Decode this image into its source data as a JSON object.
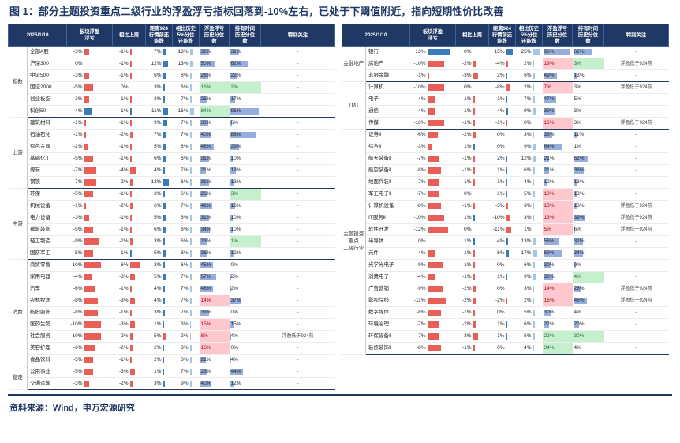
{
  "title": "图 1：部分主题投资重点二级行业的浮盈浮亏指标回落到-10%左右，已处于下阈值附近，指向短期性价比改善",
  "source": "资料来源：Wind，申万宏源研究",
  "colors": {
    "header_bg": "#1F3864",
    "bar_negative": "#E8554E",
    "bar_positive": "#2E75B6",
    "bar_light": "#9DC3E6",
    "bar_percentile": "#8FAADC",
    "hl_green": "#C6EFCE",
    "hl_red": "#FFC7CE"
  },
  "chart_data": [
    {
      "type": "table",
      "panel": "left",
      "date": "2025/1/10",
      "columns": [
        "板块浮盈\n浮亏",
        "相比上周",
        "距离924\n行情前还\n能跌",
        "相比历史\n5%分位\n还能跌",
        "浮盈浮亏\n历史分位\n数",
        "持有时间\n历史分位\n数",
        "特别关注"
      ],
      "groups": [
        {
          "label": "指数",
          "rows": [
            {
              "name": "全部A股",
              "values": [
                "-3%",
                "-1%",
                "7%",
                "13%",
                "32%",
                "31%"
              ],
              "note": "-"
            },
            {
              "name": "沪深300",
              "values": [
                "0%",
                "-1%",
                "12%",
                "13%",
                "50%",
                "62%"
              ],
              "note": "-"
            },
            {
              "name": "中证500",
              "values": [
                "-3%",
                "-1%",
                "6%",
                "8%",
                "28%",
                "22%"
              ],
              "note": "-"
            },
            {
              "name": "国证2000",
              "values": [
                "-5%",
                "0%",
                "3%",
                "6%",
                "16%",
                "2%"
              ],
              "note": "-",
              "hl": {
                "4": "green",
                "5": "green"
              }
            },
            {
              "name": "创业板指",
              "values": [
                "-3%",
                "-1%",
                "3%",
                "7%",
                "25%",
                "17%"
              ],
              "note": "-"
            },
            {
              "name": "科创50",
              "values": [
                "4%",
                "1%",
                "11%",
                "16%",
                "84%",
                "95%"
              ],
              "note": "-",
              "hl": {
                "4": "green"
              }
            }
          ]
        },
        {
          "label": "上游",
          "rows": [
            {
              "name": "建筑材料",
              "values": [
                "-1%",
                "-1%",
                "9%",
                "7%",
                "30%",
                "6%"
              ],
              "note": "-"
            },
            {
              "name": "石油石化",
              "values": [
                "-1%",
                "-2%",
                "7%",
                "7%",
                "40%",
                "88%"
              ],
              "note": "-"
            },
            {
              "name": "有色金属",
              "values": [
                "-2%",
                "-1%",
                "5%",
                "8%",
                "48%",
                "29%"
              ],
              "note": "-"
            },
            {
              "name": "基础化工",
              "values": [
                "-5%",
                "-1%",
                "6%",
                "6%",
                "31%",
                "10%"
              ],
              "note": "-"
            },
            {
              "name": "煤炭",
              "values": [
                "-7%",
                "-4%",
                "4%",
                "7%",
                "21%",
                "19%"
              ],
              "note": "-"
            },
            {
              "name": "钢铁",
              "values": [
                "-7%",
                "-2%",
                "13%",
                "6%",
                "31%",
                "13%"
              ],
              "note": "-"
            }
          ]
        },
        {
          "label": "中游",
          "rows": [
            {
              "name": "环保",
              "values": [
                "-5%",
                "-1%",
                "3%",
                "6%",
                "26%",
                "3%"
              ],
              "note": "-",
              "hl": {
                "5": "green"
              }
            },
            {
              "name": "机械设备",
              "values": [
                "-1%",
                "-2%",
                "6%",
                "7%",
                "42%",
                "16%"
              ],
              "note": "-"
            },
            {
              "name": "电力设备",
              "values": [
                "-3%",
                "-1%",
                "5%",
                "6%",
                "31%",
                "10%"
              ],
              "note": "-"
            },
            {
              "name": "建筑装饰",
              "values": [
                "-5%",
                "-1%",
                "6%",
                "6%",
                "34%",
                "10%"
              ],
              "note": "-"
            },
            {
              "name": "轻工制造",
              "values": [
                "-9%",
                "-2%",
                "3%",
                "6%",
                "23%",
                "1%"
              ],
              "note": "-",
              "hl": {
                "5": "green"
              }
            },
            {
              "name": "国防军工",
              "values": [
                "-5%",
                "1%",
                "5%",
                "8%",
                "26%",
                "12%"
              ],
              "note": "-"
            }
          ]
        },
        {
          "label": "消费",
          "rows": [
            {
              "name": "商贸零售",
              "values": [
                "-10%",
                "-6%",
                "3%",
                "6%",
                "45%",
                "0%"
              ],
              "note": "-"
            },
            {
              "name": "家用电器",
              "values": [
                "-4%",
                "-3%",
                "5%",
                "7%",
                "57%",
                "2%"
              ],
              "note": "-"
            },
            {
              "name": "汽车",
              "values": [
                "-6%",
                "-1%",
                "4%",
                "7%",
                "46%",
                "2%"
              ],
              "note": "-"
            },
            {
              "name": "农林牧渔",
              "values": [
                "-8%",
                "-3%",
                "4%",
                "7%",
                "14%",
                "37%"
              ],
              "note": "-",
              "hl": {
                "4": "red"
              }
            },
            {
              "name": "纺织服饰",
              "values": [
                "-8%",
                "-1%",
                "3%",
                "7%",
                "33%",
                "0%"
              ],
              "note": "-"
            },
            {
              "name": "医药生物",
              "values": [
                "-10%",
                "-3%",
                "1%",
                "3%",
                "15%",
                "15%"
              ],
              "note": "-",
              "hl": {
                "4": "red"
              }
            },
            {
              "name": "社会服务",
              "values": [
                "-10%",
                "-2%",
                "-5%",
                "2%",
                "8%",
                "4%"
              ],
              "note": "浮盈低于924前",
              "hl": {
                "4": "red"
              }
            },
            {
              "name": "美容护理",
              "values": [
                "-6%",
                "-2%",
                "2%",
                "8%",
                "16%",
                "0%"
              ],
              "note": "-",
              "hl": {
                "4": "red"
              }
            },
            {
              "name": "食品饮料",
              "values": [
                "-5%",
                "-1%",
                "2%",
                "8%",
                "21%",
                "4%"
              ],
              "note": "-"
            }
          ]
        },
        {
          "label": "稳定",
          "rows": [
            {
              "name": "公用事业",
              "values": [
                "-5%",
                "-3%",
                "1%",
                "7%",
                "23%",
                "44%"
              ],
              "note": "-"
            },
            {
              "name": "交通运输",
              "values": [
                "-3%",
                "-2%",
                "3%",
                "9%",
                "40%",
                "12%"
              ],
              "note": "-"
            }
          ]
        }
      ]
    },
    {
      "type": "table",
      "panel": "right",
      "date": "2025/1/10",
      "columns": [
        "板块浮盈\n浮亏",
        "相比上周",
        "距离924\n行情前还\n能跌",
        "相比历史\n5%分位\n还能跌",
        "浮盈浮亏\n历史分位\n数",
        "持有时间\n历史分位\n数",
        "特别关注"
      ],
      "groups": [
        {
          "label": "金融地产",
          "rows": [
            {
              "name": "银行",
              "values": [
                "13%",
                "0%",
                "15%",
                "25%",
                "96%",
                "62%"
              ],
              "note": "-"
            },
            {
              "name": "房地产",
              "values": [
                "-10%",
                "-2%",
                "-4%",
                "2%",
                "19%",
                "3%"
              ],
              "note": "浮盈低于924前",
              "hl": {
                "4": "red",
                "5": "green"
              }
            },
            {
              "name": "非银金融",
              "values": [
                "-1%",
                "-3%",
                "2%",
                "6%",
                "49%",
                "13%"
              ],
              "note": "-"
            }
          ]
        },
        {
          "label": "TMT",
          "rows": [
            {
              "name": "计算机",
              "values": [
                "-10%",
                "0%",
                "-8%",
                "2%",
                "7%",
                "3%"
              ],
              "note": "浮盈低于924前",
              "hl": {
                "4": "red"
              }
            },
            {
              "name": "电子",
              "values": [
                "-4%",
                "-1%",
                "1%",
                "7%",
                "47%",
                "5%"
              ],
              "note": "-"
            },
            {
              "name": "通信",
              "values": [
                "-4%",
                "-1%",
                "4%",
                "9%",
                "39%",
                "3%"
              ],
              "note": "-"
            },
            {
              "name": "传媒",
              "values": [
                "-10%",
                "-1%",
                "-1%",
                "0%",
                "16%",
                "3%"
              ],
              "note": "浮盈低于924前",
              "hl": {
                "4": "red"
              }
            }
          ]
        },
        {
          "label": "主题投资\n重点\n二级行业",
          "rows": [
            {
              "name": "证券Ⅱ",
              "values": [
                "-6%",
                "-2%",
                "0%",
                "3%",
                "33%",
                "11%"
              ],
              "note": "-"
            },
            {
              "name": "综合Ⅱ",
              "values": [
                "-3%",
                "1%",
                "0%",
                "9%",
                "64%",
                "1%"
              ],
              "note": "-"
            },
            {
              "name": "航天装备Ⅱ",
              "values": [
                "-7%",
                "-1%",
                "2%",
                "12%",
                "21%",
                "52%"
              ],
              "note": "-"
            },
            {
              "name": "航空装备Ⅱ",
              "values": [
                "-8%",
                "-1%",
                "1%",
                "6%",
                "21%",
                "36%"
              ],
              "note": "-"
            },
            {
              "name": "地面兵装Ⅱ",
              "values": [
                "-7%",
                "-1%",
                "1%",
                "4%",
                "12%",
                "13%"
              ],
              "note": "-"
            },
            {
              "name": "军工电子Ⅱ",
              "values": [
                "-7%",
                "0%",
                "1%",
                "5%",
                "10%",
                "13%"
              ],
              "note": "-",
              "hl": {
                "4": "red"
              }
            },
            {
              "name": "计算机设备",
              "values": [
                "-8%",
                "-1%",
                "-3%",
                "3%",
                "10%",
                "13%"
              ],
              "note": "浮盈低于924前",
              "hl": {
                "4": "red"
              }
            },
            {
              "name": "IT服务Ⅱ",
              "values": [
                "-10%",
                "1%",
                "-10%",
                "3%",
                "13%",
                "39%"
              ],
              "note": "浮盈低于924前",
              "hl": {
                "4": "red"
              }
            },
            {
              "name": "软件开发",
              "values": [
                "-12%",
                "0%",
                "-11%",
                "1%",
                "5%",
                "6%"
              ],
              "note": "浮盈低于924前",
              "hl": {
                "4": "red"
              }
            },
            {
              "name": "半导体",
              "values": [
                "0%",
                "1%",
                "4%",
                "13%",
                "56%",
                "32%"
              ],
              "note": "-"
            },
            {
              "name": "元件",
              "values": [
                "-4%",
                "-1%",
                "6%",
                "17%",
                "69%",
                "34%"
              ],
              "note": "-"
            },
            {
              "name": "光学光电子",
              "values": [
                "-9%",
                "-1%",
                "0%",
                "6%",
                "30%",
                "9%"
              ],
              "note": "-"
            },
            {
              "name": "消费电子",
              "values": [
                "-4%",
                "-1%",
                "1%",
                "9%",
                "36%",
                "4%"
              ],
              "note": "-",
              "hl": {
                "5": "green"
              }
            },
            {
              "name": "广告营销",
              "values": [
                "-9%",
                "-2%",
                "0%",
                "3%",
                "14%",
                "26%"
              ],
              "note": "浮盈低于924前",
              "hl": {
                "4": "red"
              }
            },
            {
              "name": "影视院线",
              "values": [
                "-11%",
                "-2%",
                "-2%",
                "2%",
                "16%",
                "46%"
              ],
              "note": "浮盈低于924前",
              "hl": {
                "4": "red"
              }
            },
            {
              "name": "数字媒体",
              "values": [
                "-8%",
                "-1%",
                "0%",
                "5%",
                "30%",
                "4%"
              ],
              "note": "-"
            },
            {
              "name": "环境治理",
              "values": [
                "-7%",
                "-2%",
                "1%",
                "6%",
                "22%",
                "20%"
              ],
              "note": "-"
            },
            {
              "name": "环保设备Ⅱ",
              "values": [
                "-7%",
                "-3%",
                "1%",
                "5%",
                "22%",
                "30%"
              ],
              "note": "-",
              "hl": {
                "4": "green",
                "5": "green"
              }
            },
            {
              "name": "装修装饰Ⅱ",
              "values": [
                "-8%",
                "-1%",
                "0%",
                "4%",
                "34%",
                "4%"
              ],
              "note": "-",
              "hl": {
                "4": "green"
              }
            }
          ]
        }
      ]
    }
  ]
}
